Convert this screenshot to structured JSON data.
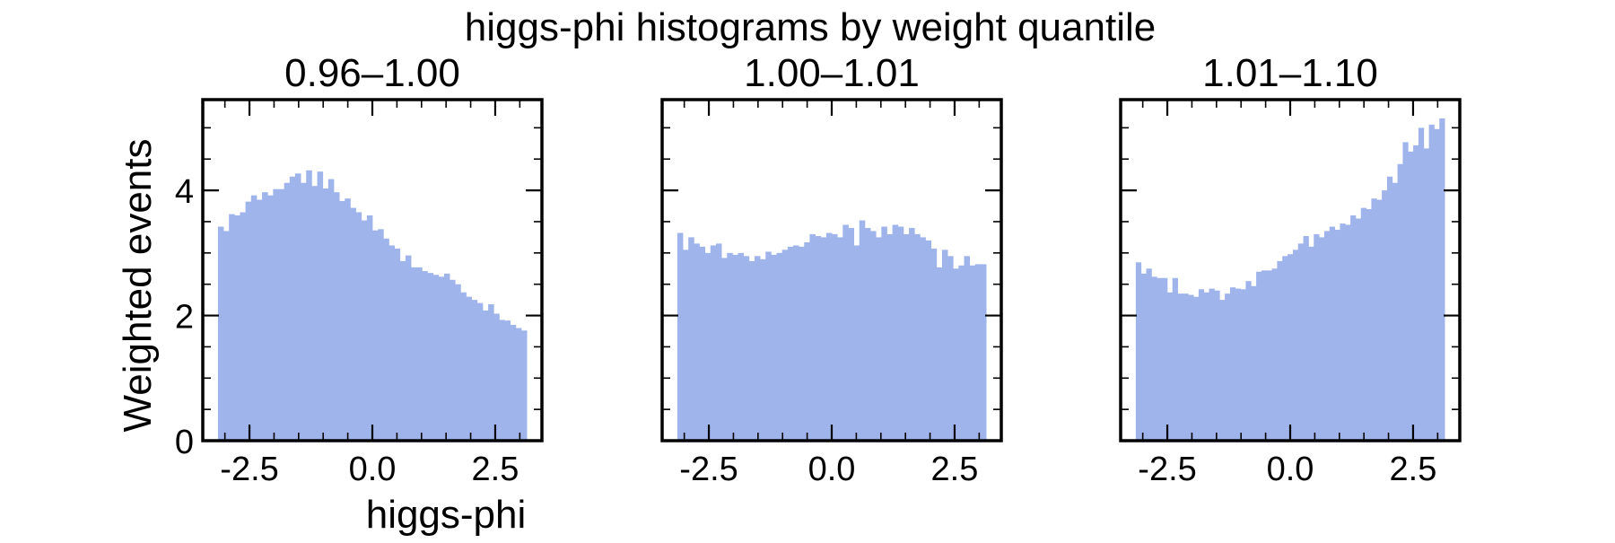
{
  "figure": {
    "suptitle": "higgs-phi histograms by weight quantile",
    "ylabel": "Weighted events",
    "xlabel": "higgs-phi"
  },
  "style": {
    "bar_color": "#a0b4ec",
    "axis_color": "#000000",
    "background": "#ffffff"
  },
  "chart_data": [
    {
      "type": "bar",
      "title": "0.96–1.00",
      "xlabel": "higgs-phi",
      "ylabel": "Weighted events",
      "xlim": [
        -3.45,
        3.45
      ],
      "ylim": [
        0,
        5.45
      ],
      "bin_range": [
        -3.1416,
        3.1416
      ],
      "xticks": [
        -2.5,
        0.0,
        2.5
      ],
      "xticklabels": [
        "-2.5",
        "0.0",
        "2.5"
      ],
      "yticks": [
        0,
        2,
        4
      ],
      "yticklabels": [
        "0",
        "2",
        "4"
      ],
      "show_yticklabels": true,
      "values": [
        3.42,
        3.35,
        3.62,
        3.6,
        3.65,
        3.82,
        3.92,
        3.85,
        3.97,
        3.92,
        4.02,
        4.02,
        4.12,
        4.22,
        4.27,
        4.12,
        4.32,
        4.07,
        4.3,
        4.03,
        4.18,
        3.97,
        3.83,
        3.87,
        3.72,
        3.65,
        3.52,
        3.6,
        3.36,
        3.38,
        3.23,
        3.12,
        3.07,
        2.87,
        2.96,
        2.77,
        2.77,
        2.71,
        2.68,
        2.65,
        2.62,
        2.67,
        2.57,
        2.5,
        2.37,
        2.3,
        2.25,
        2.2,
        2.08,
        2.18,
        2.03,
        1.93,
        1.92,
        1.85,
        1.8,
        1.76
      ]
    },
    {
      "type": "bar",
      "title": "1.00–1.01",
      "xlabel": "",
      "ylabel": "",
      "xlim": [
        -3.45,
        3.45
      ],
      "ylim": [
        0,
        5.45
      ],
      "bin_range": [
        -3.1416,
        3.1416
      ],
      "xticks": [
        -2.5,
        0.0,
        2.5
      ],
      "xticklabels": [
        "-2.5",
        "0.0",
        "2.5"
      ],
      "yticks": [
        0,
        2,
        4
      ],
      "yticklabels": [
        "0",
        "2",
        "4"
      ],
      "show_yticklabels": false,
      "values": [
        3.32,
        3.05,
        3.25,
        3.15,
        3.1,
        3.0,
        3.12,
        3.15,
        2.92,
        3.0,
        2.97,
        3.0,
        2.95,
        2.87,
        2.95,
        2.9,
        3.02,
        2.97,
        3.0,
        3.05,
        3.1,
        3.12,
        3.1,
        3.17,
        3.3,
        3.27,
        3.25,
        3.32,
        3.3,
        3.25,
        3.45,
        3.4,
        3.12,
        3.52,
        3.4,
        3.35,
        3.25,
        3.42,
        3.3,
        3.45,
        3.42,
        3.3,
        3.4,
        3.3,
        3.25,
        3.2,
        3.07,
        2.77,
        3.05,
        2.95,
        2.75,
        2.8,
        2.95,
        2.8,
        2.82,
        2.82
      ]
    },
    {
      "type": "bar",
      "title": "1.01–1.10",
      "xlabel": "",
      "ylabel": "",
      "xlim": [
        -3.45,
        3.45
      ],
      "ylim": [
        0,
        5.45
      ],
      "bin_range": [
        -3.1416,
        3.1416
      ],
      "xticks": [
        -2.5,
        0.0,
        2.5
      ],
      "xticklabels": [
        "-2.5",
        "0.0",
        "2.5"
      ],
      "yticks": [
        0,
        2,
        4
      ],
      "yticklabels": [
        "0",
        "2",
        "4"
      ],
      "show_yticklabels": false,
      "values": [
        2.85,
        2.67,
        2.75,
        2.62,
        2.6,
        2.6,
        2.37,
        2.6,
        2.35,
        2.35,
        2.33,
        2.3,
        2.42,
        2.37,
        2.43,
        2.4,
        2.25,
        2.35,
        2.45,
        2.43,
        2.42,
        2.55,
        2.47,
        2.7,
        2.72,
        2.72,
        2.75,
        2.87,
        2.95,
        2.98,
        3.05,
        3.15,
        3.27,
        3.1,
        3.3,
        3.25,
        3.35,
        3.42,
        3.37,
        3.47,
        3.45,
        3.6,
        3.55,
        3.72,
        3.7,
        3.87,
        3.85,
        4.0,
        4.22,
        4.12,
        4.42,
        4.77,
        4.62,
        4.72,
        5.0,
        4.67,
        5.05,
        4.98,
        5.15
      ]
    }
  ]
}
